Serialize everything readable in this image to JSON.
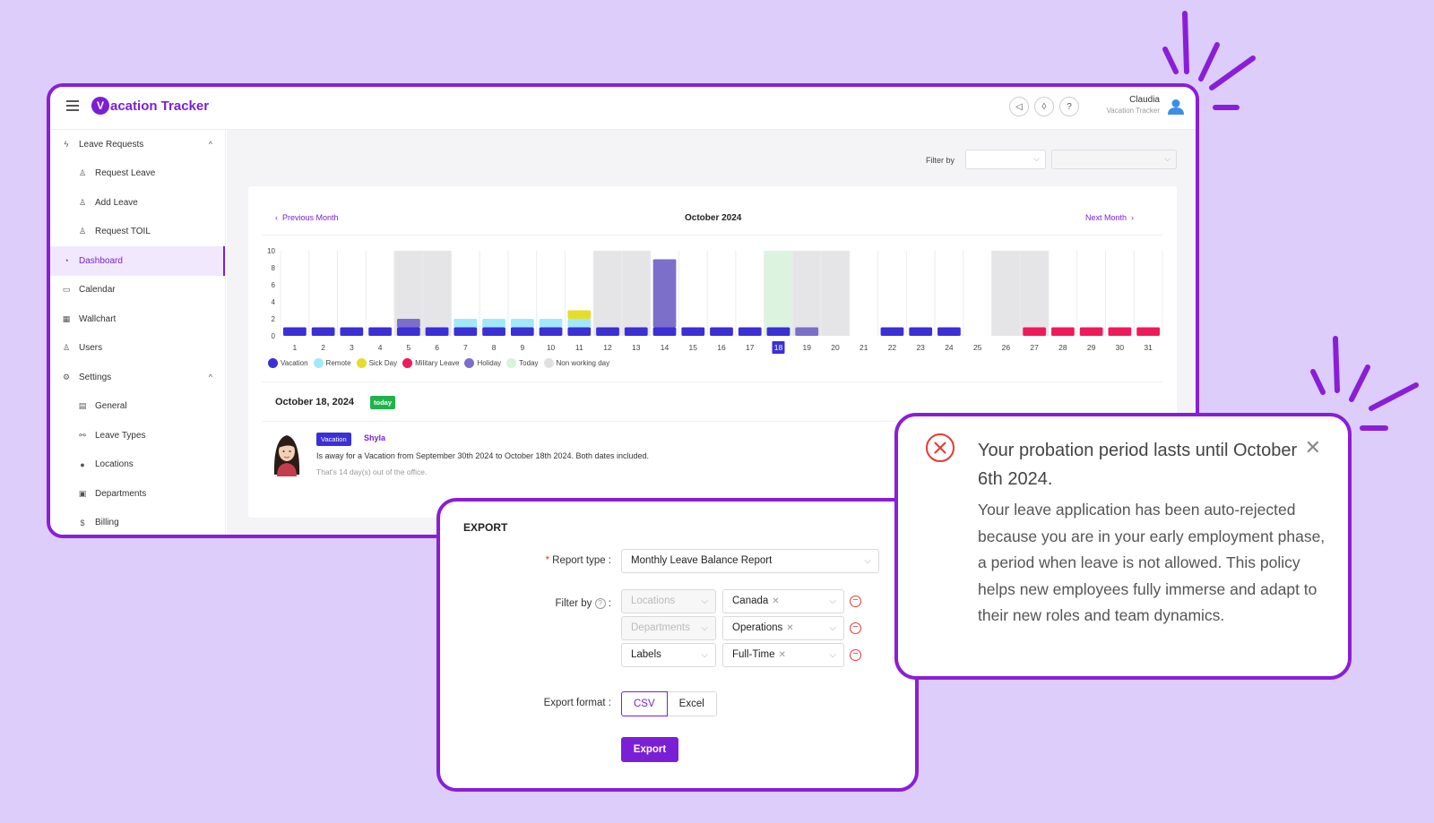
{
  "app": {
    "logo_mark": "V",
    "logo_text": "acation Tracker",
    "user_name": "Claudia",
    "user_subtitle": "Vacation Tracker"
  },
  "sidebar": {
    "items": [
      {
        "label": "Leave Requests",
        "icon": "bolt-icon",
        "glyph": "ϟ",
        "sub": false,
        "chevron": "^"
      },
      {
        "label": "Request Leave",
        "icon": "bell-icon",
        "glyph": "♙",
        "sub": true
      },
      {
        "label": "Add Leave",
        "icon": "bell-icon",
        "glyph": "♙",
        "sub": true
      },
      {
        "label": "Request TOIL",
        "icon": "bell-icon",
        "glyph": "♙",
        "sub": true
      },
      {
        "label": "Dashboard",
        "icon": "dashboard-icon",
        "glyph": "◔",
        "sub": false,
        "active": true
      },
      {
        "label": "Calendar",
        "icon": "calendar-icon",
        "glyph": "▭",
        "sub": false
      },
      {
        "label": "Wallchart",
        "icon": "table-icon",
        "glyph": "▦",
        "sub": false
      },
      {
        "label": "Users",
        "icon": "user-icon",
        "glyph": "♙",
        "sub": false
      },
      {
        "label": "Settings",
        "icon": "gear-icon",
        "glyph": "⚙",
        "sub": false,
        "chevron": "^"
      },
      {
        "label": "General",
        "icon": "document-icon",
        "glyph": "▤",
        "sub": true
      },
      {
        "label": "Leave Types",
        "icon": "share-icon",
        "glyph": "⚯",
        "sub": true
      },
      {
        "label": "Locations",
        "icon": "location-icon",
        "glyph": "●",
        "sub": true
      },
      {
        "label": "Departments",
        "icon": "org-icon",
        "glyph": "▣",
        "sub": true
      },
      {
        "label": "Billing",
        "icon": "billing-icon",
        "glyph": "$",
        "sub": true
      }
    ]
  },
  "filter": {
    "label": "Filter by"
  },
  "calendar": {
    "prev_label": "Previous Month",
    "next_label": "Next Month",
    "month_title": "October 2024",
    "date_title": "October 18, 2024",
    "today_badge": "today",
    "entry": {
      "badge": "Vacation",
      "name": "Shyla",
      "text": "Is away for a Vacation from September 30th 2024 to October 18th 2024. Both dates included.",
      "subtext": "That's 14 day(s) out of the office."
    },
    "legend": [
      {
        "label": "Vacation",
        "color": "#3b2fd6"
      },
      {
        "label": "Remote",
        "color": "#9fe9fb"
      },
      {
        "label": "Sick Day",
        "color": "#e8dc2a"
      },
      {
        "label": "Military Leave",
        "color": "#f0195c"
      },
      {
        "label": "Holiday",
        "color": "#7b6fc9"
      },
      {
        "label": "Today",
        "color": "#d8f2dc"
      },
      {
        "label": "Non working day",
        "color": "#e0e0e0"
      }
    ]
  },
  "chart_data": {
    "type": "bar",
    "ylim": [
      0,
      10
    ],
    "yticks": [
      0,
      2,
      4,
      6,
      8,
      10
    ],
    "categories": [
      "1",
      "2",
      "3",
      "4",
      "5",
      "6",
      "7",
      "8",
      "9",
      "10",
      "11",
      "12",
      "13",
      "14",
      "15",
      "16",
      "17",
      "18",
      "19",
      "20",
      "21",
      "22",
      "23",
      "24",
      "25",
      "26",
      "27",
      "28",
      "29",
      "30",
      "31"
    ],
    "highlighted_category": "18",
    "non_working_days": [
      "5",
      "6",
      "12",
      "13",
      "19",
      "20",
      "26",
      "27"
    ],
    "today": "18",
    "series": [
      {
        "name": "Vacation",
        "color": "#3b2fd6",
        "values": [
          1,
          1,
          1,
          1,
          1,
          1,
          1,
          1,
          1,
          1,
          1,
          1,
          1,
          1,
          1,
          1,
          1,
          1,
          0,
          0,
          0,
          1,
          1,
          1,
          0,
          0,
          0,
          0,
          0,
          0,
          0
        ]
      },
      {
        "name": "Remote",
        "color": "#9fe9fb",
        "values": [
          0,
          0,
          0,
          0,
          0,
          0,
          1,
          1,
          1,
          1,
          1,
          0,
          0,
          0,
          0,
          0,
          0,
          0,
          0,
          0,
          0,
          0,
          0,
          0,
          0,
          0,
          0,
          0,
          0,
          0,
          0
        ]
      },
      {
        "name": "Sick Day",
        "color": "#e8dc2a",
        "values": [
          0,
          0,
          0,
          0,
          0,
          0,
          0,
          0,
          0,
          0,
          1,
          0,
          0,
          0,
          0,
          0,
          0,
          0,
          0,
          0,
          0,
          0,
          0,
          0,
          0,
          0,
          0,
          0,
          0,
          0,
          0
        ]
      },
      {
        "name": "Military Leave",
        "color": "#f0195c",
        "values": [
          0,
          0,
          0,
          0,
          0,
          0,
          0,
          0,
          0,
          0,
          0,
          0,
          0,
          0,
          0,
          0,
          0,
          0,
          0,
          0,
          0,
          0,
          0,
          0,
          0,
          0,
          1,
          1,
          1,
          1,
          1
        ]
      },
      {
        "name": "Holiday",
        "color": "#7b6fc9",
        "values": [
          0,
          0,
          0,
          0,
          1,
          0,
          0,
          0,
          0,
          0,
          0,
          0,
          0,
          8,
          0,
          0,
          0,
          0,
          1,
          0,
          0,
          0,
          0,
          0,
          0,
          0,
          0,
          0,
          0,
          0,
          0
        ]
      }
    ]
  },
  "export": {
    "title": "EXPORT",
    "report_type_label": "Report type",
    "report_type_value": "Monthly Leave Balance Report",
    "filter_label": "Filter by",
    "filters": [
      {
        "field": "Locations",
        "value": "Canada",
        "dim": true
      },
      {
        "field": "Departments",
        "value": "Operations",
        "dim": true
      },
      {
        "field": "Labels",
        "value": "Full-Time",
        "dim": false
      }
    ],
    "format_label": "Export format",
    "formats": [
      "CSV",
      "Excel"
    ],
    "selected_format": "CSV",
    "button": "Export"
  },
  "alert": {
    "title": "Your probation period lasts until October 6th 2024.",
    "body": "Your leave application has been auto-rejected because you are in your early employment phase, a period when leave is not allowed. This policy helps new employees fully immerse and adapt to their new roles and team dynamics.",
    "close": "✕"
  }
}
